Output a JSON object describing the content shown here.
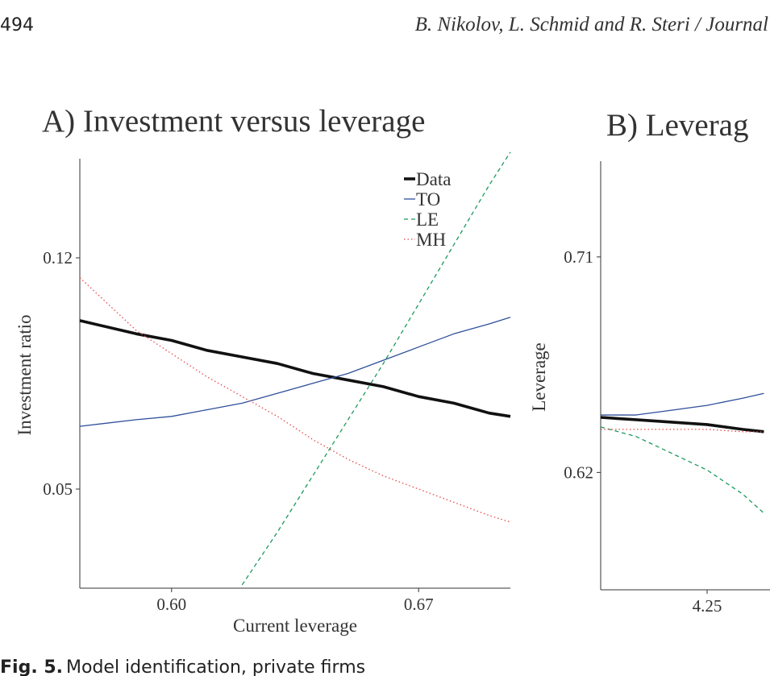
{
  "header": {
    "page_number": "494",
    "authors": "B. Nikolov, L. Schmid and R. Steri / Journal"
  },
  "chart_data": [
    {
      "type": "line",
      "title": "A) Investment versus leverage",
      "x_label": "Current leverage",
      "y_label": "Investment ratio",
      "x": [
        0.574,
        0.59,
        0.6,
        0.61,
        0.62,
        0.63,
        0.64,
        0.65,
        0.66,
        0.67,
        0.68,
        0.69,
        0.696
      ],
      "series": [
        {
          "name": "Data",
          "color": "#111111",
          "style": "bold",
          "values": [
            0.101,
            0.097,
            0.095,
            0.092,
            0.09,
            0.088,
            0.085,
            0.083,
            0.081,
            0.078,
            0.076,
            0.073,
            0.072
          ]
        },
        {
          "name": "TO",
          "color": "#2f4f9a",
          "style": "solid",
          "values": [
            0.069,
            0.071,
            0.072,
            0.074,
            0.076,
            0.079,
            0.082,
            0.085,
            0.089,
            0.093,
            0.097,
            0.1,
            0.102
          ]
        },
        {
          "name": "LE",
          "color": "#1a9a5c",
          "style": "dashed",
          "values": [
            null,
            null,
            null,
            null,
            0.021,
            0.037,
            0.054,
            0.071,
            0.088,
            0.106,
            0.124,
            0.142,
            0.152
          ]
        },
        {
          "name": "MH",
          "color": "#e8474a",
          "style": "dotted",
          "values": [
            0.114,
            0.098,
            0.091,
            0.084,
            0.078,
            0.072,
            0.065,
            0.059,
            0.054,
            0.05,
            0.046,
            0.042,
            0.04
          ]
        }
      ],
      "xlim": [
        0.574,
        0.696
      ],
      "xticks": [
        {
          "value": 0.6,
          "label": "0.60"
        },
        0.67
      ],
      "ylim": [
        0.02,
        0.15
      ],
      "yticks": [
        0.05,
        0.12
      ],
      "legend": "upper right"
    },
    {
      "type": "line",
      "title": "B) Leverag",
      "y_label": "Leverage",
      "x": [
        4.1,
        4.15,
        4.2,
        4.25,
        4.3,
        4.33
      ],
      "series": [
        {
          "color": "#111111",
          "style": "bold",
          "values": [
            0.643,
            0.642,
            0.641,
            0.64,
            0.638,
            0.637
          ]
        },
        {
          "color": "#2f4f9a",
          "style": "solid",
          "values": [
            0.644,
            0.644,
            0.646,
            0.648,
            0.651,
            0.653
          ]
        },
        {
          "color": "#1a9a5c",
          "style": "dashed",
          "values": [
            0.639,
            0.635,
            0.628,
            0.621,
            0.611,
            0.603
          ]
        },
        {
          "color": "#e8474a",
          "style": "dotted",
          "values": [
            0.638,
            0.638,
            0.638,
            0.638,
            0.637,
            0.637
          ]
        }
      ],
      "xlim": [
        4.1,
        4.6
      ],
      "xticks": [
        4.25
      ],
      "ylim": [
        0.571,
        0.75
      ],
      "yticks": [
        0.62,
        0.71
      ]
    }
  ],
  "caption": {
    "label": "Fig. 5.",
    "text": "Model identification, private firms"
  }
}
